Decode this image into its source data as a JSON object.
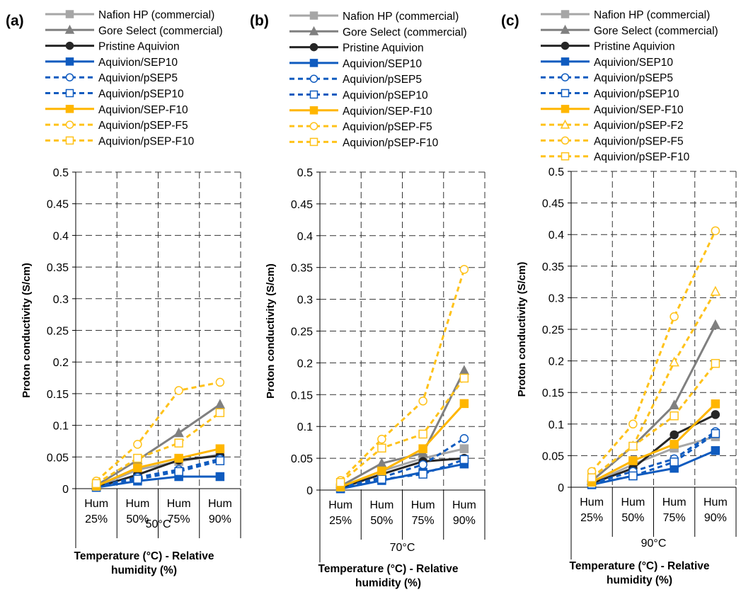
{
  "category_labels": [
    "Hum\n25%",
    "Hum\n50%",
    "Hum\n75%",
    "Hum\n90%"
  ],
  "colors": {
    "light_gray": "#a6a6a6",
    "dark_gray": "#808080",
    "near_black": "#262626",
    "blue": "#0f5bbf",
    "gold": "#ffb600",
    "gold_light": "#ffc21a"
  },
  "chart_data": [
    {
      "panel_label": "(a)",
      "type": "line",
      "categories": [
        "Hum 25%",
        "Hum 50%",
        "Hum 75%",
        "Hum 90%"
      ],
      "temperature_label": "50°C",
      "xlabel": "Temperature (°C) - Relative humidity (%)",
      "ylabel": "Proton conductivity (S/cm)",
      "ylim": [
        0,
        0.5
      ],
      "yticks": [
        "0",
        "0.05",
        "0.1",
        "0.15",
        "0.2",
        "0.25",
        "0.3",
        "0.35",
        "0.4",
        "0.45",
        "0.5"
      ],
      "grid": true,
      "legend_position": "top",
      "series": [
        {
          "name": "Nafion HP (commercial)",
          "style": "nafion",
          "values": [
            0.003,
            0.03,
            0.043,
            0.054
          ]
        },
        {
          "name": "Gore Select (commercial)",
          "style": "gore",
          "values": [
            0.005,
            0.045,
            0.088,
            0.133
          ]
        },
        {
          "name": "Pristine Aquivion",
          "style": "pristine",
          "values": [
            0.002,
            0.022,
            0.045,
            0.052
          ]
        },
        {
          "name": "Aquivion/SEP10",
          "style": "sep10",
          "values": [
            0.002,
            0.012,
            0.019,
            0.019
          ]
        },
        {
          "name": "Aquivion/pSEP5",
          "style": "psep5",
          "values": [
            0.003,
            0.018,
            0.03,
            0.047
          ]
        },
        {
          "name": "Aquivion/pSEP10",
          "style": "psep10",
          "values": [
            0.002,
            0.015,
            0.027,
            0.044
          ]
        },
        {
          "name": "Aquivion/SEP-F10",
          "style": "sepf10",
          "values": [
            0.004,
            0.033,
            0.048,
            0.063
          ]
        },
        {
          "name": "Aquivion/pSEP-F5",
          "style": "psepf5",
          "values": [
            0.012,
            0.07,
            0.155,
            0.168
          ]
        },
        {
          "name": "Aquivion/pSEP-F10",
          "style": "psepf10",
          "values": [
            0.008,
            0.048,
            0.072,
            0.12
          ]
        }
      ]
    },
    {
      "panel_label": "(b)",
      "type": "line",
      "categories": [
        "Hum 25%",
        "Hum 50%",
        "Hum 75%",
        "Hum 90%"
      ],
      "temperature_label": "70°C",
      "xlabel": "Temperature (°C) - Relative humidity (%)",
      "ylabel": "Proton conductivity (S/cm)",
      "ylim": [
        0,
        0.5
      ],
      "yticks": [
        "0",
        "0.05",
        "0.1",
        "0.15",
        "0.2",
        "0.25",
        "0.3",
        "0.35",
        "0.4",
        "0.45",
        "0.5"
      ],
      "grid": true,
      "legend_position": "top",
      "series": [
        {
          "name": "Nafion HP (commercial)",
          "style": "nafion",
          "values": [
            0.004,
            0.03,
            0.05,
            0.065
          ]
        },
        {
          "name": "Gore Select (commercial)",
          "style": "gore",
          "values": [
            0.006,
            0.042,
            0.058,
            0.188
          ]
        },
        {
          "name": "Pristine Aquivion",
          "style": "pristine",
          "values": [
            0.003,
            0.025,
            0.045,
            0.05
          ]
        },
        {
          "name": "Aquivion/SEP10",
          "style": "sep10",
          "values": [
            0.002,
            0.015,
            0.028,
            0.041
          ]
        },
        {
          "name": "Aquivion/pSEP5",
          "style": "psep5",
          "values": [
            0.004,
            0.02,
            0.04,
            0.081
          ]
        },
        {
          "name": "Aquivion/pSEP10",
          "style": "psep10",
          "values": [
            0.003,
            0.017,
            0.025,
            0.048
          ]
        },
        {
          "name": "Aquivion/SEP-F10",
          "style": "sepf10",
          "values": [
            0.005,
            0.03,
            0.065,
            0.136
          ]
        },
        {
          "name": "Aquivion/pSEP-F5",
          "style": "psepf5",
          "values": [
            0.015,
            0.08,
            0.14,
            0.347
          ]
        },
        {
          "name": "Aquivion/pSEP-F10",
          "style": "psepf10",
          "values": [
            0.012,
            0.066,
            0.088,
            0.176
          ]
        }
      ]
    },
    {
      "panel_label": "(c)",
      "type": "line",
      "categories": [
        "Hum 25%",
        "Hum 50%",
        "Hum 75%",
        "Hum 90%"
      ],
      "temperature_label": "90°C",
      "xlabel": "Temperature (°C) - Relative humidity (%)",
      "ylabel": "Proton conductivity (S/cm)",
      "ylim": [
        0,
        0.5
      ],
      "yticks": [
        "0",
        "0.05",
        "0.1",
        "0.15",
        "0.2",
        "0.25",
        "0.3",
        "0.35",
        "0.4",
        "0.45",
        "0.5"
      ],
      "grid": true,
      "legend_position": "top",
      "series": [
        {
          "name": "Nafion HP (commercial)",
          "style": "nafion",
          "values": [
            0.006,
            0.036,
            0.062,
            0.08
          ]
        },
        {
          "name": "Gore Select (commercial)",
          "style": "gore",
          "values": [
            0.01,
            0.065,
            0.13,
            0.257
          ]
        },
        {
          "name": "Pristine Aquivion",
          "style": "pristine",
          "values": [
            0.006,
            0.03,
            0.083,
            0.115
          ]
        },
        {
          "name": "Aquivion/SEP10",
          "style": "sep10",
          "values": [
            0.004,
            0.018,
            0.03,
            0.058
          ]
        },
        {
          "name": "Aquivion/pSEP5",
          "style": "psep5",
          "values": [
            0.006,
            0.025,
            0.045,
            0.088
          ]
        },
        {
          "name": "Aquivion/pSEP10",
          "style": "psep10",
          "values": [
            0.005,
            0.018,
            0.04,
            0.085
          ]
        },
        {
          "name": "Aquivion/SEP-F10",
          "style": "sepf10",
          "values": [
            0.008,
            0.042,
            0.068,
            0.132
          ]
        },
        {
          "name": "Aquivion/pSEP-F2",
          "style": "psepf2",
          "values": [
            0.016,
            0.065,
            0.198,
            0.31
          ]
        },
        {
          "name": "Aquivion/pSEP-F5",
          "style": "psepf5",
          "values": [
            0.025,
            0.1,
            0.27,
            0.406
          ]
        },
        {
          "name": "Aquivion/pSEP-F10",
          "style": "psepf10",
          "values": [
            0.015,
            0.065,
            0.113,
            0.196
          ]
        }
      ]
    }
  ]
}
